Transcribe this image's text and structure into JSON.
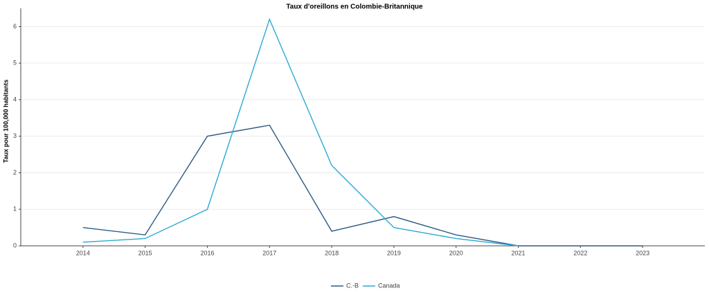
{
  "chart_data": {
    "type": "line",
    "title": "Taux d'oreillons en Colombie-Britannique",
    "y_label": "Taux pour 100,000 habitants",
    "x": [
      2014,
      2015,
      2016,
      2017,
      2018,
      2019,
      2020,
      2021,
      2022,
      2023
    ],
    "series": [
      {
        "name": "C.-B",
        "color": "#2b5a86",
        "values": [
          0.5,
          0.3,
          3.0,
          3.3,
          0.4,
          0.8,
          0.3,
          0.0,
          0.0,
          0.0
        ]
      },
      {
        "name": "Canada",
        "color": "#2aa8d6",
        "values": [
          0.1,
          0.2,
          1.0,
          6.2,
          2.2,
          0.5,
          0.2,
          0.0,
          null,
          null
        ]
      }
    ],
    "xlim": [
      2013,
      2024
    ],
    "xticks": [
      2014,
      2015,
      2016,
      2017,
      2018,
      2019,
      2020,
      2021,
      2022,
      2023
    ],
    "ylim": [
      0,
      6.5
    ],
    "yticks": [
      0,
      1,
      2,
      3,
      4,
      5,
      6
    ],
    "grid": true,
    "legend": "bottom"
  }
}
